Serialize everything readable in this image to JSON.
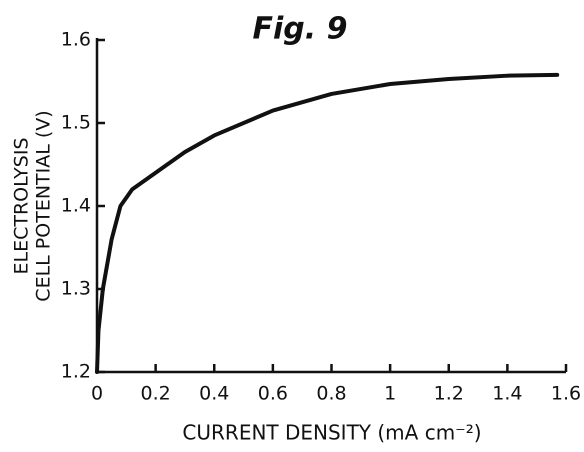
{
  "chart_data": {
    "type": "line",
    "title": "Fig. 9",
    "x_label": "CURRENT DENSITY (mA cm⁻²)",
    "y_label": [
      "ELECTROLYSIS",
      "CELL POTENTIAL (V)"
    ],
    "x": [
      0,
      0.005,
      0.02,
      0.05,
      0.08,
      0.12,
      0.2,
      0.3,
      0.4,
      0.6,
      0.8,
      1.0,
      1.2,
      1.4,
      1.57
    ],
    "series": [
      {
        "color": "#111111",
        "values": [
          1.2,
          1.25,
          1.3,
          1.36,
          1.4,
          1.42,
          1.44,
          1.465,
          1.485,
          1.515,
          1.535,
          1.547,
          1.553,
          1.557,
          1.558
        ]
      }
    ],
    "xlim": [
      0,
      1.6
    ],
    "ylim": [
      1.2,
      1.6
    ],
    "xticks": [
      0,
      0.2,
      0.4,
      0.6,
      0.8,
      1,
      1.2,
      1.4,
      1.6
    ],
    "yticks": [
      1.2,
      1.3,
      1.4,
      1.5,
      1.6
    ],
    "grid": false
  }
}
